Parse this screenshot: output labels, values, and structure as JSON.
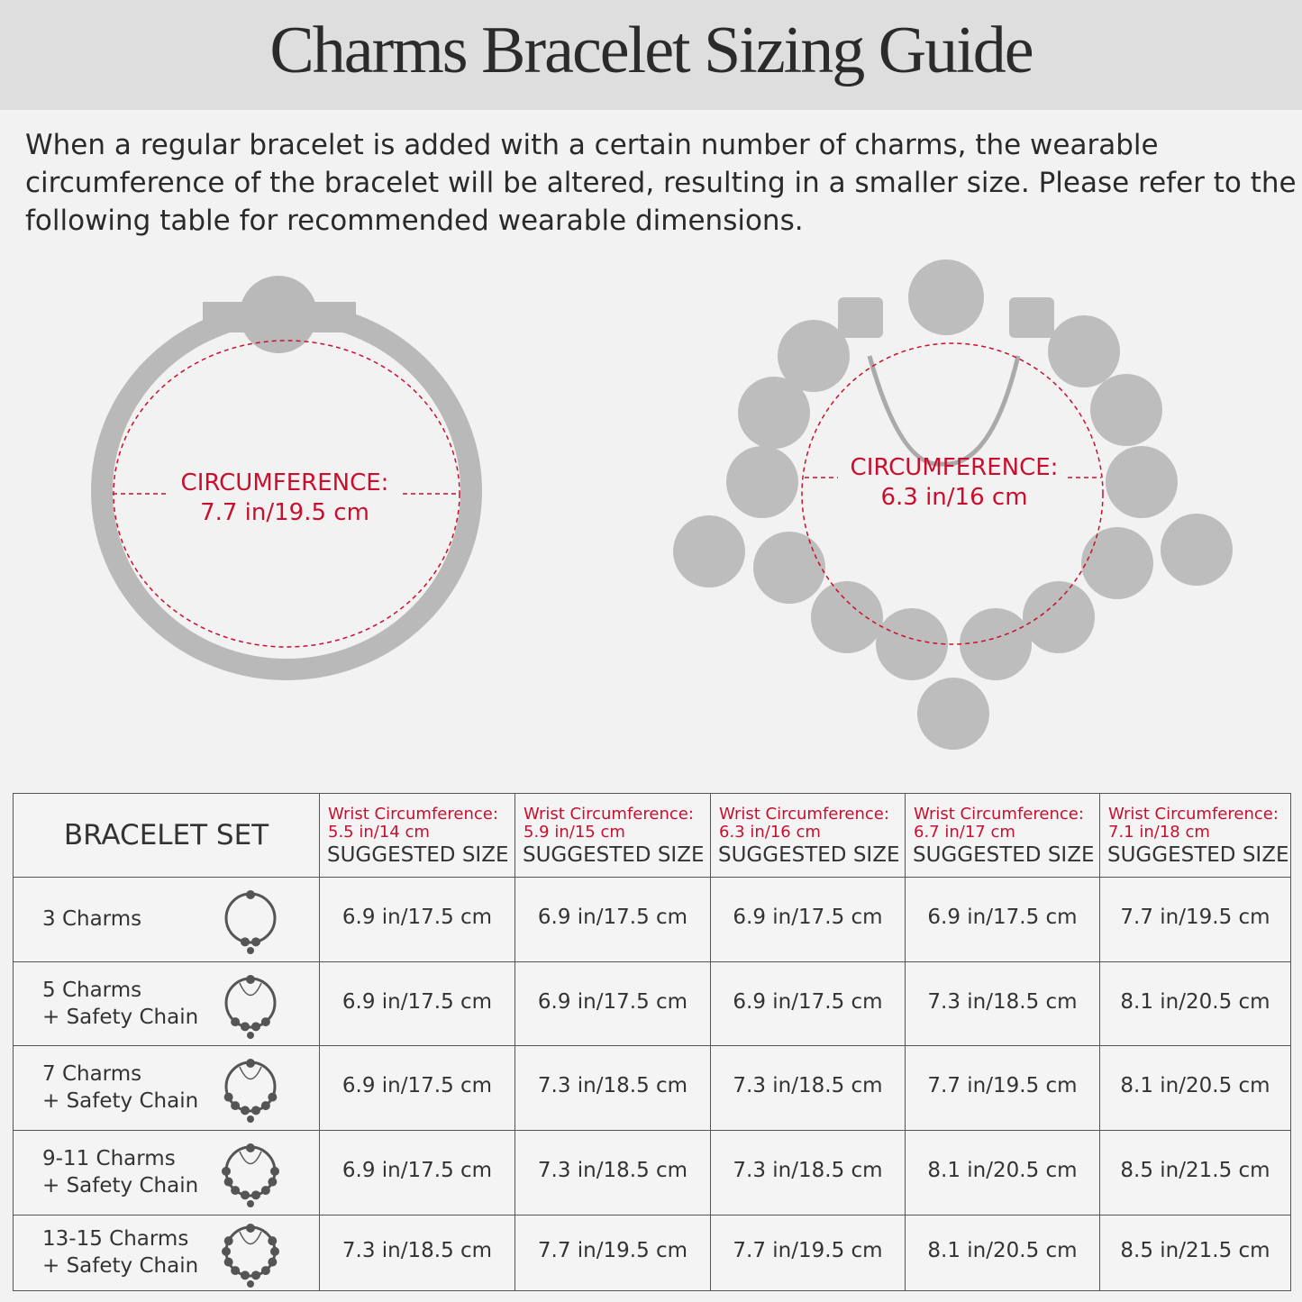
{
  "header": {
    "title": "Charms Bracelet Sizing Guide"
  },
  "intro": [
    "When a regular bracelet is added with a certain number of charms, the wearable",
    "circumference of the bracelet will be altered, resulting in a smaller size. Please refer to the",
    "following table for recommended wearable dimensions."
  ],
  "diagrams": [
    {
      "label": [
        "CIRCUMFERENCE:",
        "7.7 in/19.5 cm"
      ]
    },
    {
      "label": [
        "CIRCUMFERENCE:",
        "6.3 in/16 cm"
      ]
    }
  ],
  "table": {
    "corner": "BRACELET SET",
    "columns": [
      {
        "wrist": [
          "Wrist Circumference:",
          "5.5 in/14 cm"
        ],
        "size": "SUGGESTED SIZE"
      },
      {
        "wrist": [
          "Wrist Circumference:",
          "5.9 in/15 cm"
        ],
        "size": "SUGGESTED SIZE"
      },
      {
        "wrist": [
          "Wrist Circumference:",
          "6.3 in/16 cm"
        ],
        "size": "SUGGESTED SIZE"
      },
      {
        "wrist": [
          "Wrist Circumference:",
          "6.7 in/17 cm"
        ],
        "size": "SUGGESTED SIZE"
      },
      {
        "wrist": [
          "Wrist Circumference:",
          "7.1 in/18 cm"
        ],
        "size": "SUGGESTED SIZE"
      }
    ],
    "rows": [
      {
        "label": [
          "3 Charms"
        ],
        "values": [
          "6.9 in/17.5 cm",
          "6.9 in/17.5 cm",
          "6.9 in/17.5 cm",
          "6.9 in/17.5 cm",
          "7.7 in/19.5 cm"
        ]
      },
      {
        "label": [
          "5 Charms",
          "+ Safety Chain"
        ],
        "values": [
          "6.9 in/17.5 cm",
          "6.9 in/17.5 cm",
          "6.9 in/17.5 cm",
          "7.3 in/18.5 cm",
          "8.1 in/20.5 cm"
        ]
      },
      {
        "label": [
          "7 Charms",
          "+ Safety Chain"
        ],
        "values": [
          "6.9 in/17.5 cm",
          "7.3 in/18.5 cm",
          "7.3 in/18.5 cm",
          "7.7 in/19.5 cm",
          "8.1 in/20.5 cm"
        ]
      },
      {
        "label": [
          "9-11 Charms",
          "+ Safety Chain"
        ],
        "values": [
          "6.9 in/17.5 cm",
          "7.3 in/18.5 cm",
          "7.3 in/18.5 cm",
          "8.1 in/20.5 cm",
          "8.5 in/21.5 cm"
        ]
      },
      {
        "label": [
          "13-15 Charms",
          "+ Safety Chain"
        ],
        "values": [
          "7.3 in/18.5 cm",
          "7.7 in/19.5 cm",
          "7.7 in/19.5 cm",
          "8.1 in/20.5 cm",
          "8.5 in/21.5 cm"
        ]
      }
    ]
  }
}
